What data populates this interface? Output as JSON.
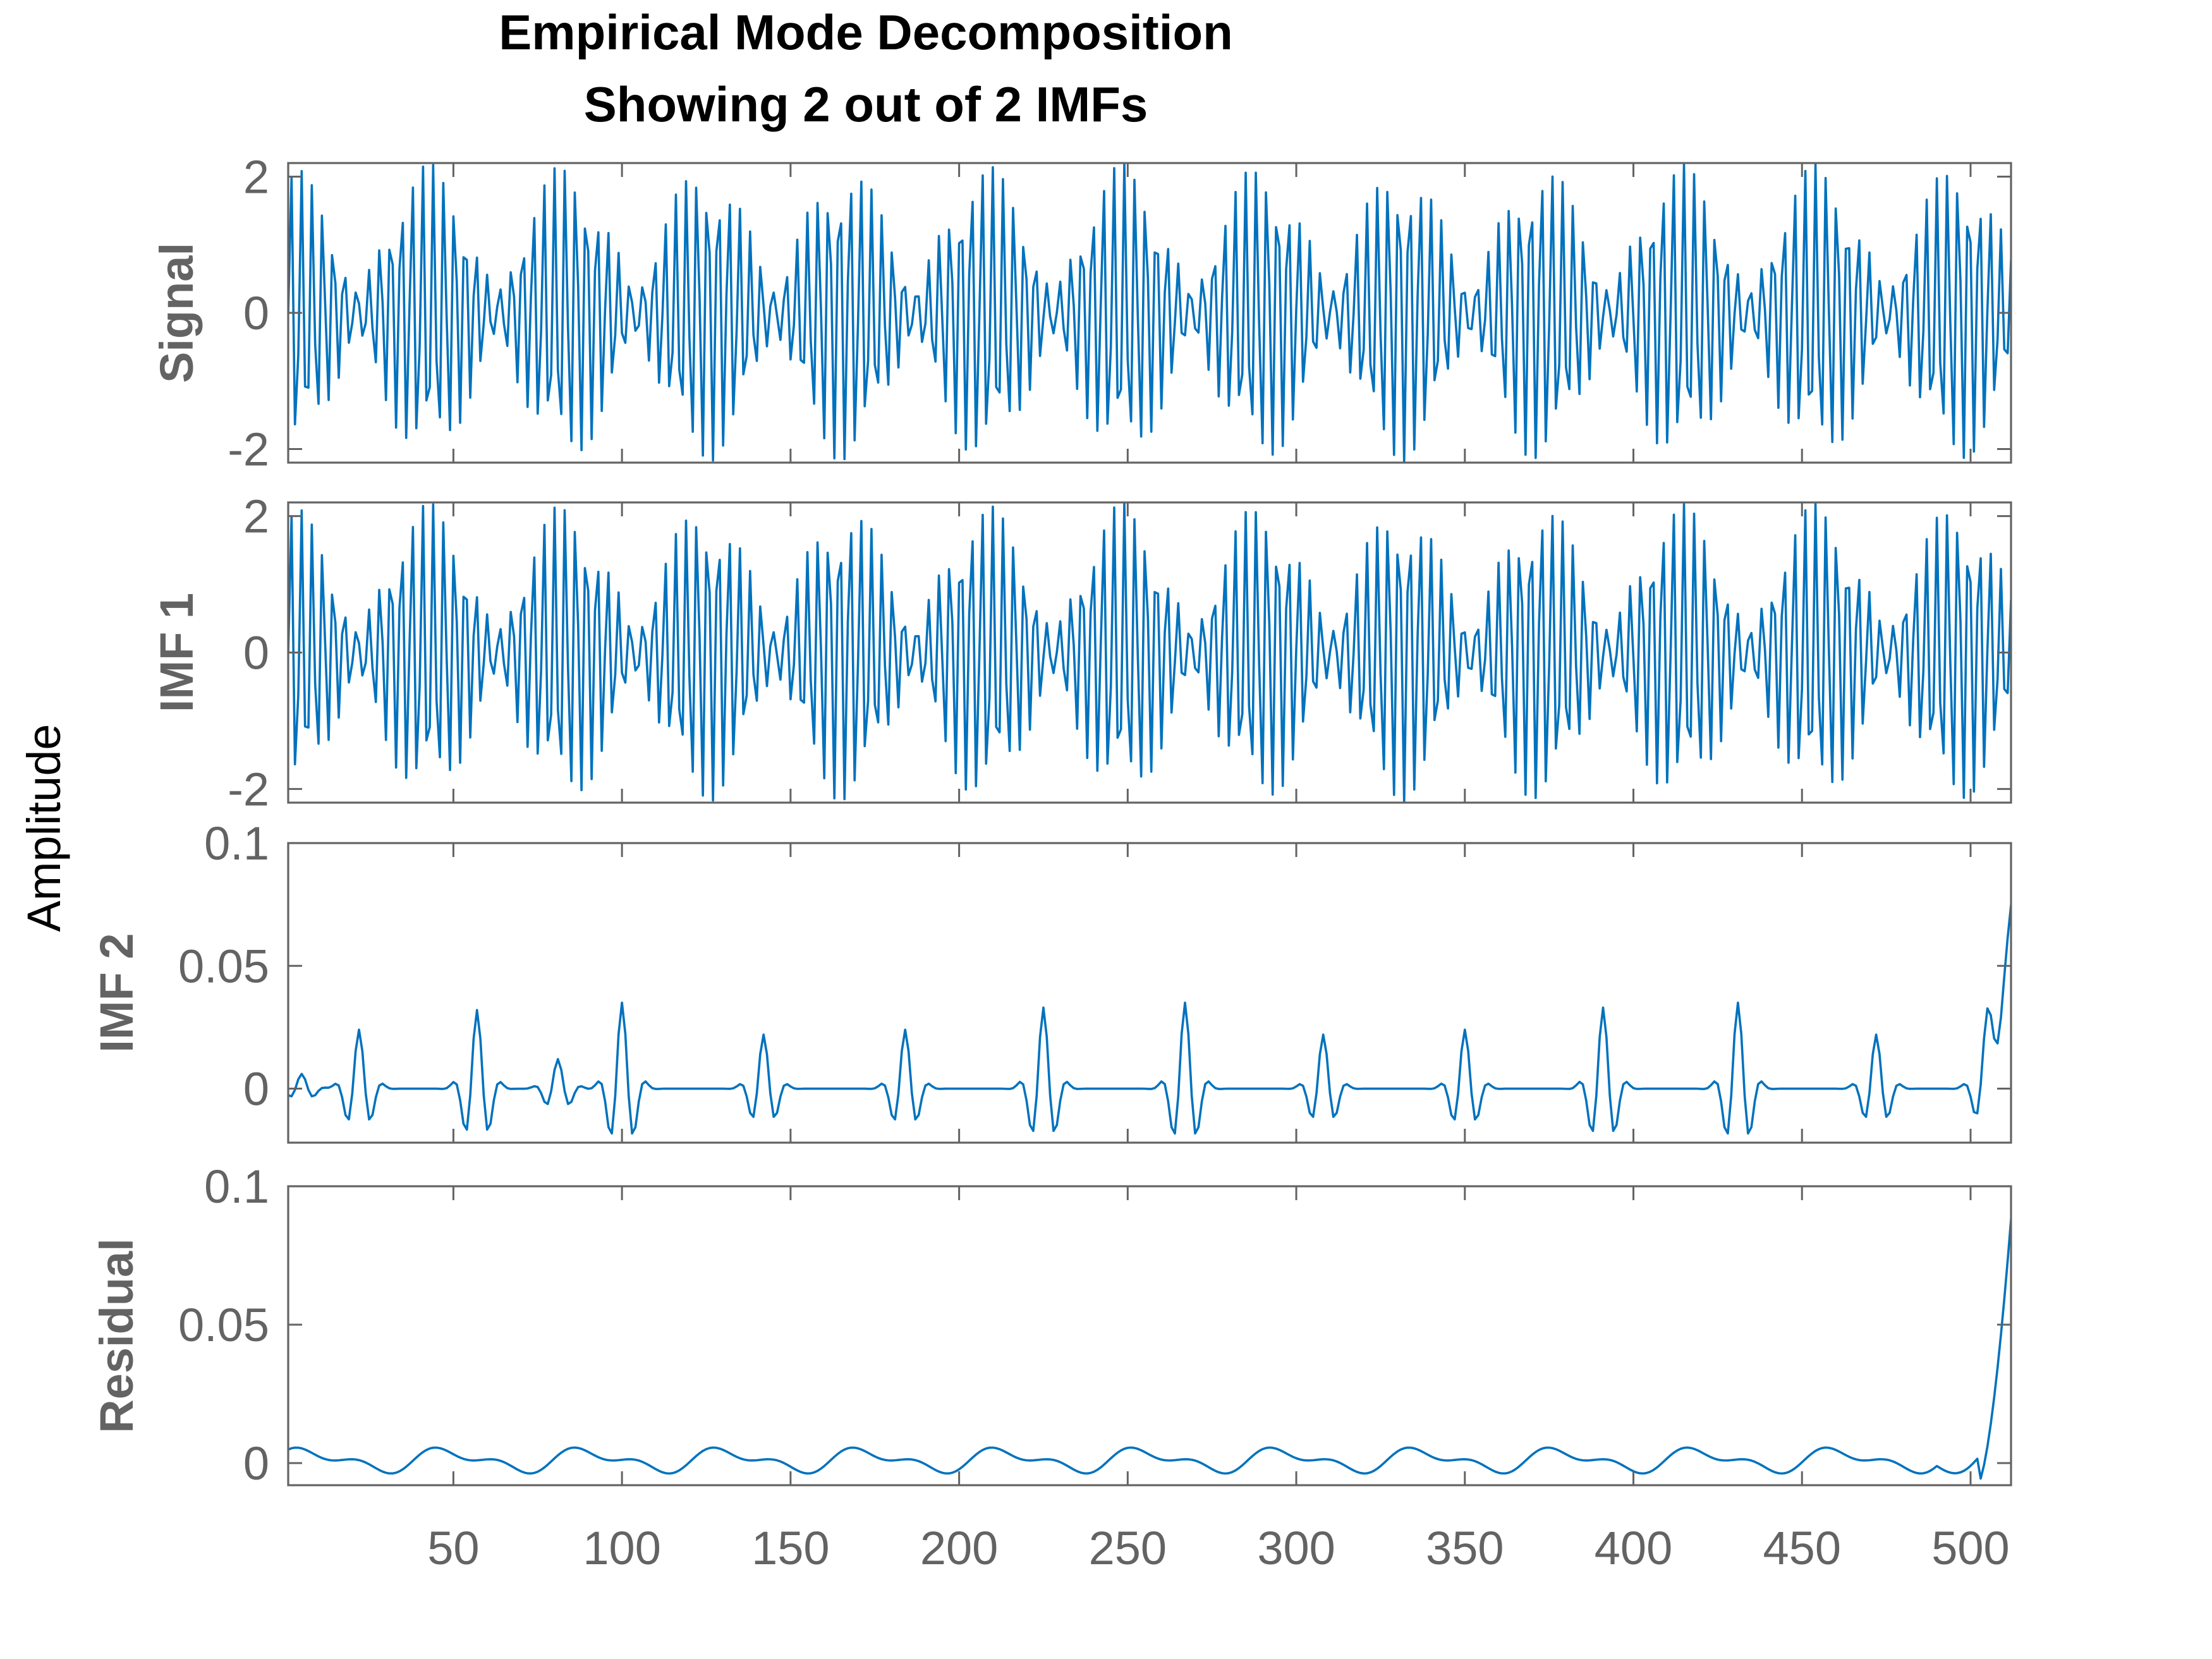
{
  "chart_data": {
    "type": "line",
    "title": "Empirical Mode Decomposition",
    "subtitle": "Showing 2 out of 2 IMFs",
    "common_ylabel": "Amplitude",
    "x_range": [
      1,
      512
    ],
    "x_ticks": [
      50,
      100,
      150,
      200,
      250,
      300,
      350,
      400,
      450,
      500
    ],
    "grid": false,
    "line_color": "#0072BD",
    "axis_color": "#636363",
    "panels": [
      {
        "ylabel": "Signal",
        "ylim": [
          -2.2,
          2.2
        ],
        "yticks": [
          -2,
          0,
          2
        ],
        "ytick_labels": [
          "-2",
          "0",
          "2"
        ],
        "series": {
          "kind": "beat_oscillation",
          "x_start": 1,
          "x_end": 512,
          "n_points": 512,
          "carrier_period_samples": 3.13,
          "envelope_peak_spacing_samples": 41.25,
          "envelope_amplitude_range": [
            0.3,
            2.2
          ]
        }
      },
      {
        "ylabel": "IMF 1",
        "ylim": [
          -2.2,
          2.2
        ],
        "yticks": [
          -2,
          0,
          2
        ],
        "ytick_labels": [
          "-2",
          "0",
          "2"
        ],
        "series": {
          "kind": "beat_oscillation",
          "x_start": 1,
          "x_end": 512,
          "n_points": 512,
          "carrier_period_samples": 3.13,
          "envelope_peak_spacing_samples": 41.25,
          "envelope_amplitude_range": [
            0.3,
            2.2
          ]
        }
      },
      {
        "ylabel": "IMF 2",
        "ylim": [
          -0.022,
          0.1
        ],
        "yticks": [
          0,
          0.05,
          0.1
        ],
        "ytick_labels": [
          "0",
          "0.05",
          "0.1"
        ],
        "series": {
          "kind": "bursts",
          "x_start": 1,
          "x_end": 512,
          "n_points": 512,
          "baseline": 0,
          "burst_centers": [
            5,
            22,
            57,
            81,
            100,
            142,
            184,
            225,
            267,
            308,
            350,
            391,
            431,
            472,
            505
          ],
          "burst_amplitudes": [
            0.006,
            0.024,
            0.032,
            0.012,
            0.035,
            0.022,
            0.024,
            0.033,
            0.035,
            0.022,
            0.024,
            0.033,
            0.035,
            0.022,
            0.022
          ],
          "end_value": 0.073
        }
      },
      {
        "ylabel": "Residual",
        "ylim": [
          -0.008,
          0.1
        ],
        "yticks": [
          0,
          0.05,
          0.1
        ],
        "ytick_labels": [
          "0",
          "0.05",
          "0.1"
        ],
        "series": {
          "kind": "wavy_baseline",
          "x_start": 1,
          "x_end": 512,
          "n_points": 512,
          "baseline": 0.001,
          "wobble_amplitude": 0.006,
          "wobble_period_samples": 41.25,
          "min_value": -0.008,
          "end_value": 0.088
        }
      }
    ]
  }
}
